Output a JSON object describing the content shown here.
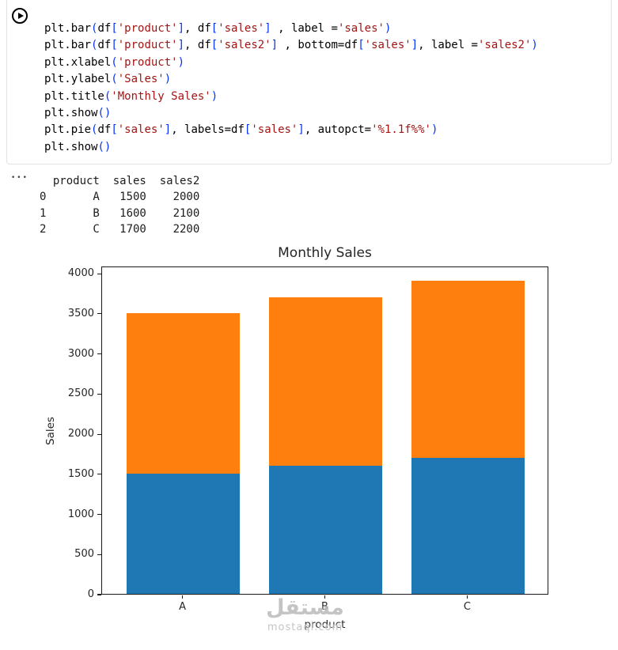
{
  "cell": {
    "run_button_icon": "play-icon",
    "code_lines": [
      [
        [
          "p",
          "plt.bar"
        ],
        [
          "b",
          "("
        ],
        [
          "p",
          "df"
        ],
        [
          "k",
          "["
        ],
        [
          "s",
          "'product'"
        ],
        [
          "k",
          "]"
        ],
        [
          "p",
          ", df"
        ],
        [
          "k",
          "["
        ],
        [
          "s",
          "'sales'"
        ],
        [
          "k",
          "]"
        ],
        [
          "p",
          " , label ="
        ],
        [
          "s",
          "'sales'"
        ],
        [
          "b",
          ")"
        ]
      ],
      [
        [
          "p",
          "plt.bar"
        ],
        [
          "b",
          "("
        ],
        [
          "p",
          "df"
        ],
        [
          "k",
          "["
        ],
        [
          "s",
          "'product'"
        ],
        [
          "k",
          "]"
        ],
        [
          "p",
          ", df"
        ],
        [
          "k",
          "["
        ],
        [
          "s",
          "'sales2'"
        ],
        [
          "k",
          "]"
        ],
        [
          "p",
          " , bottom=df"
        ],
        [
          "k",
          "["
        ],
        [
          "s",
          "'sales'"
        ],
        [
          "k",
          "]"
        ],
        [
          "p",
          ", label ="
        ],
        [
          "s",
          "'sales2'"
        ],
        [
          "b",
          ")"
        ]
      ],
      [
        [
          "p",
          "plt.xlabel"
        ],
        [
          "b",
          "("
        ],
        [
          "s",
          "'product'"
        ],
        [
          "b",
          ")"
        ]
      ],
      [
        [
          "p",
          "plt.ylabel"
        ],
        [
          "b",
          "("
        ],
        [
          "s",
          "'Sales'"
        ],
        [
          "b",
          ")"
        ]
      ],
      [
        [
          "p",
          "plt.title"
        ],
        [
          "b",
          "("
        ],
        [
          "s",
          "'Monthly Sales'"
        ],
        [
          "b",
          ")"
        ]
      ],
      [
        [
          "p",
          "plt.show"
        ],
        [
          "b",
          "()"
        ]
      ],
      [
        [
          "p",
          "plt.pie"
        ],
        [
          "b",
          "("
        ],
        [
          "p",
          "df"
        ],
        [
          "k",
          "["
        ],
        [
          "s",
          "'sales'"
        ],
        [
          "k",
          "]"
        ],
        [
          "p",
          ", labels=df"
        ],
        [
          "k",
          "["
        ],
        [
          "s",
          "'sales'"
        ],
        [
          "k",
          "]"
        ],
        [
          "p",
          ", autopct="
        ],
        [
          "s",
          "'%1.1f%%'"
        ],
        [
          "b",
          ")"
        ]
      ],
      [
        [
          "p",
          "plt.show"
        ],
        [
          "b",
          "()"
        ]
      ]
    ]
  },
  "output": {
    "collapse_indicator": "•••",
    "dataframe": {
      "columns": [
        "product",
        "sales",
        "sales2"
      ],
      "index": [
        "0",
        "1",
        "2"
      ],
      "rows": [
        [
          "A",
          "1500",
          "2000"
        ],
        [
          "B",
          "1600",
          "2100"
        ],
        [
          "C",
          "1700",
          "2200"
        ]
      ],
      "text": "  product  sales  sales2\n0       A   1500    2000\n1       B   1600    2100\n2       C   1700    2200"
    }
  },
  "chart_data": {
    "type": "bar",
    "stacked": true,
    "title": "Monthly Sales",
    "xlabel": "product",
    "ylabel": "Sales",
    "categories": [
      "A",
      "B",
      "C"
    ],
    "series": [
      {
        "name": "sales",
        "values": [
          1500,
          1600,
          1700
        ],
        "color": "#1f77b4"
      },
      {
        "name": "sales2",
        "values": [
          2000,
          2100,
          2200
        ],
        "color": "#ff7f0e"
      }
    ],
    "totals": [
      3500,
      3700,
      3900
    ],
    "ylim": [
      0,
      4090
    ],
    "yticks": [
      0,
      500,
      1000,
      1500,
      2000,
      2500,
      3000,
      3500,
      4000
    ],
    "grid": false,
    "legend": "none"
  },
  "watermark": {
    "arabic": "مستقل",
    "domain": "mostaql.com"
  }
}
